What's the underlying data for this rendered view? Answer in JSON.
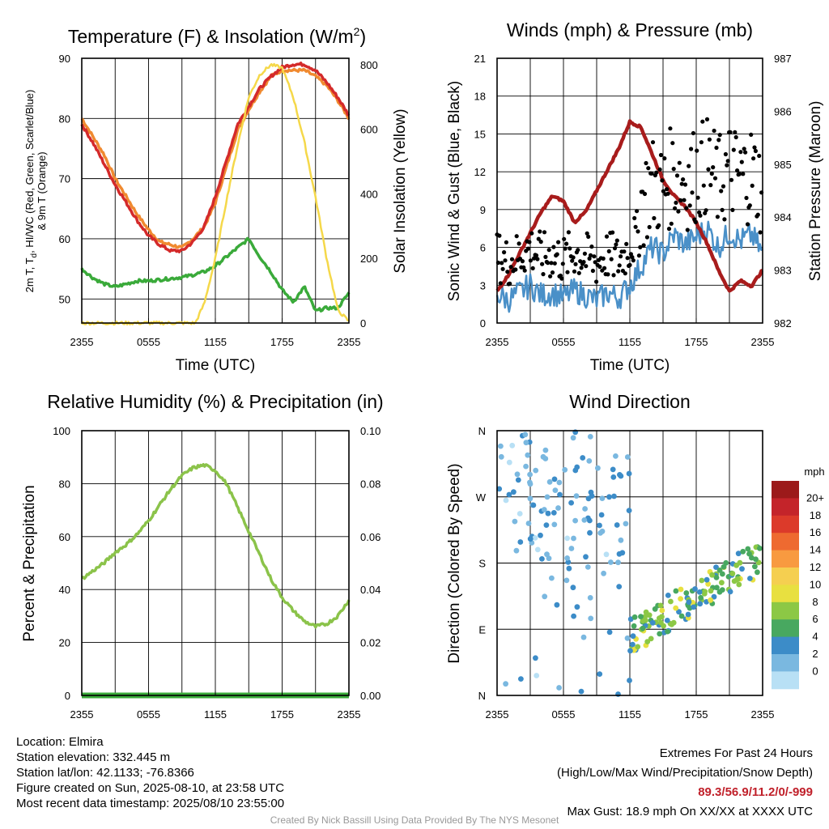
{
  "chart_data": [
    {
      "type": "line",
      "title": "Temperature (F) & Insolation (W/m",
      "title_sup": "2",
      "title_close": ")",
      "xlabel": "Time (UTC)",
      "ylabel_line1": "2m T, T",
      "ylabel_sub": "d",
      "ylabel_line1_rest": ", HI/WC (Red, Green, Scarlet/Blue)",
      "ylabel_line2": "& 9m T (Orange)",
      "y2label": "Solar Insolation (Yellow)",
      "xticks": [
        "2355",
        "0555",
        "1155",
        "1755",
        "2355"
      ],
      "ylim": [
        46,
        90
      ],
      "yticks": [
        "50",
        "60",
        "70",
        "80",
        "90"
      ],
      "y2lim": [
        0,
        820
      ],
      "y2ticks": [
        "0",
        "200",
        "400",
        "600",
        "800"
      ],
      "x_hours": [
        0,
        24
      ],
      "series": [
        {
          "color": "#f08a30",
          "axis": "left",
          "width": 3.5,
          "points": [
            [
              0,
              80
            ],
            [
              1,
              77
            ],
            [
              2,
              74
            ],
            [
              3,
              70
            ],
            [
              4,
              67
            ],
            [
              5,
              64
            ],
            [
              6,
              61.5
            ],
            [
              7,
              59.5
            ],
            [
              8,
              59
            ],
            [
              9,
              58.5
            ],
            [
              10,
              60
            ],
            [
              11,
              62
            ],
            [
              12,
              66
            ],
            [
              13,
              72
            ],
            [
              14,
              78
            ],
            [
              15,
              81.5
            ],
            [
              16,
              84.5
            ],
            [
              17,
              87
            ],
            [
              18,
              88
            ],
            [
              19,
              88
            ],
            [
              20,
              88
            ],
            [
              21,
              87
            ],
            [
              22,
              85.5
            ],
            [
              23,
              83
            ],
            [
              24,
              80
            ]
          ]
        },
        {
          "color": "#d42a2a",
          "axis": "left",
          "width": 3.5,
          "points": [
            [
              0,
              79
            ],
            [
              1,
              76
            ],
            [
              2,
              72.5
            ],
            [
              3,
              69
            ],
            [
              4,
              66
            ],
            [
              5,
              63
            ],
            [
              6,
              60.5
            ],
            [
              7,
              59
            ],
            [
              8,
              58
            ],
            [
              9,
              58
            ],
            [
              10,
              59.5
            ],
            [
              11,
              62
            ],
            [
              12,
              67
            ],
            [
              13,
              73
            ],
            [
              14,
              79
            ],
            [
              15,
              82
            ],
            [
              16,
              85
            ],
            [
              17,
              87
            ],
            [
              18,
              88.5
            ],
            [
              19,
              89
            ],
            [
              20,
              89
            ],
            [
              21,
              88
            ],
            [
              22,
              86
            ],
            [
              23,
              83.5
            ],
            [
              24,
              80.5
            ]
          ]
        },
        {
          "color": "#3aaa3a",
          "axis": "left",
          "width": 3.5,
          "points": [
            [
              0,
              55
            ],
            [
              1,
              53.5
            ],
            [
              2,
              52.5
            ],
            [
              3,
              52
            ],
            [
              4,
              52.5
            ],
            [
              5,
              53
            ],
            [
              6,
              53
            ],
            [
              7,
              53.2
            ],
            [
              8,
              53.4
            ],
            [
              9,
              53.6
            ],
            [
              10,
              54
            ],
            [
              11,
              54.5
            ],
            [
              12,
              55.5
            ],
            [
              13,
              57
            ],
            [
              14,
              58.5
            ],
            [
              15,
              60
            ],
            [
              16,
              57
            ],
            [
              17,
              54.5
            ],
            [
              18,
              51.5
            ],
            [
              19,
              49.5
            ],
            [
              20,
              52
            ],
            [
              21,
              48
            ],
            [
              22,
              48.5
            ],
            [
              23,
              48.5
            ],
            [
              24,
              51
            ]
          ]
        },
        {
          "color": "#f5d84a",
          "axis": "right",
          "width": 2.5,
          "points": [
            [
              0,
              0
            ],
            [
              5,
              0
            ],
            [
              9,
              0
            ],
            [
              10.2,
              0
            ],
            [
              11,
              60
            ],
            [
              12,
              200
            ],
            [
              13,
              380
            ],
            [
              14,
              550
            ],
            [
              15,
              700
            ],
            [
              16,
              770
            ],
            [
              17,
              800
            ],
            [
              18,
              790
            ],
            [
              19,
              700
            ],
            [
              20,
              560
            ],
            [
              21,
              390
            ],
            [
              22,
              200
            ],
            [
              23,
              40
            ],
            [
              24,
              5
            ]
          ]
        }
      ]
    },
    {
      "type": "line",
      "title": "Winds (mph) & Pressure (mb)",
      "xlabel": "Time (UTC)",
      "ylabel": "Sonic Wind & Gust (Blue, Black)",
      "y2label": "Station Pressure (Maroon)",
      "xticks": [
        "2355",
        "0555",
        "1155",
        "1755",
        "2355"
      ],
      "ylim": [
        0,
        21
      ],
      "yticks": [
        "0",
        "3",
        "6",
        "9",
        "12",
        "15",
        "18",
        "21"
      ],
      "y2lim": [
        982,
        987
      ],
      "y2ticks": [
        "982",
        "983",
        "984",
        "985",
        "986",
        "987"
      ],
      "series": [
        {
          "name": "pressure",
          "color": "#a81c1c",
          "axis": "right",
          "width": 4.5,
          "points": [
            [
              0,
              982.6
            ],
            [
              1,
              982.9
            ],
            [
              2,
              983.3
            ],
            [
              3,
              983.7
            ],
            [
              4,
              984.1
            ],
            [
              5,
              984.4
            ],
            [
              6,
              984.3
            ],
            [
              7,
              983.9
            ],
            [
              8,
              984.1
            ],
            [
              9,
              984.5
            ],
            [
              10,
              984.9
            ],
            [
              11,
              985.3
            ],
            [
              12,
              985.8
            ],
            [
              13,
              985.7
            ],
            [
              14,
              985.2
            ],
            [
              15,
              984.7
            ],
            [
              16,
              984.4
            ],
            [
              17,
              984.2
            ],
            [
              18,
              983.9
            ],
            [
              19,
              983.5
            ],
            [
              20,
              983.0
            ],
            [
              21,
              982.6
            ],
            [
              22,
              982.8
            ],
            [
              23,
              982.7
            ],
            [
              24,
              983.0
            ]
          ]
        },
        {
          "name": "wind",
          "color": "#4a90c8",
          "axis": "left",
          "width": 2.5,
          "points": [
            [
              0,
              2.3
            ],
            [
              1,
              1.8
            ],
            [
              2,
              2.4
            ],
            [
              3,
              3.0
            ],
            [
              4,
              2.2
            ],
            [
              5,
              2.4
            ],
            [
              6,
              2.0
            ],
            [
              7,
              2.6
            ],
            [
              8,
              2.2
            ],
            [
              9,
              1.8
            ],
            [
              10,
              2.4
            ],
            [
              11,
              2.0
            ],
            [
              12,
              3.0
            ],
            [
              13,
              4.5
            ],
            [
              14,
              6.0
            ],
            [
              15,
              5.5
            ],
            [
              16,
              7.0
            ],
            [
              17,
              6.2
            ],
            [
              18,
              6.8
            ],
            [
              19,
              7.5
            ],
            [
              20,
              6.0
            ],
            [
              21,
              7.2
            ],
            [
              22,
              6.5
            ],
            [
              23,
              7.0
            ],
            [
              24,
              5.5
            ]
          ]
        }
      ]
    },
    {
      "type": "line",
      "title": "Relative Humidity (%) & Precipitation (in)",
      "ylabel": "Percent & Precipitation",
      "xticks": [
        "2355",
        "0555",
        "1155",
        "1755",
        "2355"
      ],
      "ylim": [
        0,
        100
      ],
      "yticks": [
        "0",
        "20",
        "40",
        "60",
        "80",
        "100"
      ],
      "y2lim": [
        0,
        0.1
      ],
      "y2ticks": [
        "0.00",
        "0.02",
        "0.04",
        "0.06",
        "0.08",
        "0.10"
      ],
      "series": [
        {
          "name": "rh",
          "color": "#8bc34a",
          "axis": "left",
          "width": 3.5,
          "points": [
            [
              0,
              44
            ],
            [
              1,
              47
            ],
            [
              2,
              50
            ],
            [
              3,
              54
            ],
            [
              4,
              57
            ],
            [
              5,
              61
            ],
            [
              6,
              66
            ],
            [
              7,
              72
            ],
            [
              8,
              78
            ],
            [
              9,
              83
            ],
            [
              10,
              86
            ],
            [
              11,
              87
            ],
            [
              12,
              85
            ],
            [
              13,
              80
            ],
            [
              14,
              71
            ],
            [
              15,
              62
            ],
            [
              16,
              53
            ],
            [
              17,
              44
            ],
            [
              18,
              37
            ],
            [
              19,
              32
            ],
            [
              20,
              28
            ],
            [
              21,
              26
            ],
            [
              22,
              27
            ],
            [
              23,
              30
            ],
            [
              24,
              36
            ]
          ]
        },
        {
          "name": "precip",
          "color": "#3aaa3a",
          "axis": "right",
          "width": 7,
          "points": [
            [
              0,
              0
            ],
            [
              24,
              0
            ]
          ]
        }
      ]
    },
    {
      "type": "scatter",
      "title": "Wind Direction",
      "ylabel": "Direction (Colored By Speed)",
      "xticks": [
        "2355",
        "0555",
        "1155",
        "1755",
        "2355"
      ],
      "yticks": [
        "N",
        "E",
        "S",
        "W",
        "N"
      ],
      "ylim": [
        0,
        360
      ],
      "colorbar_title": "mph",
      "colorbar_labels": [
        "20+",
        "18",
        "16",
        "14",
        "12",
        "10",
        "8",
        "6",
        "4",
        "2",
        "0"
      ],
      "colorbar_colors": [
        "#9c1a1a",
        "#c4242a",
        "#dc3a2a",
        "#ee6a30",
        "#f89a40",
        "#f5cf50",
        "#e8e040",
        "#8cc845",
        "#48a860",
        "#3c8cc8",
        "#7ab8e0",
        "#b8e0f5"
      ]
    }
  ],
  "info": {
    "location": "Location: Elmira",
    "elevation": "Station elevation: 332.445 m",
    "latlon": "Station lat/lon: 42.1133; -76.8366",
    "created": "Figure created on Sun, 2025-08-10, at 23:58 UTC",
    "recent": "Most recent data timestamp: 2025/08/10 23:55:00"
  },
  "extremes": {
    "title": "Extremes For Past 24 Hours",
    "subtitle": "(High/Low/Max Wind/Precipitation/Snow Depth)",
    "values": "89.3/56.9/11.2/0/-999",
    "gust": "Max Gust: 18.9 mph On XX/XX at XXXX UTC"
  },
  "credit": "Created By Nick Bassill Using Data Provided By The NYS Mesonet"
}
